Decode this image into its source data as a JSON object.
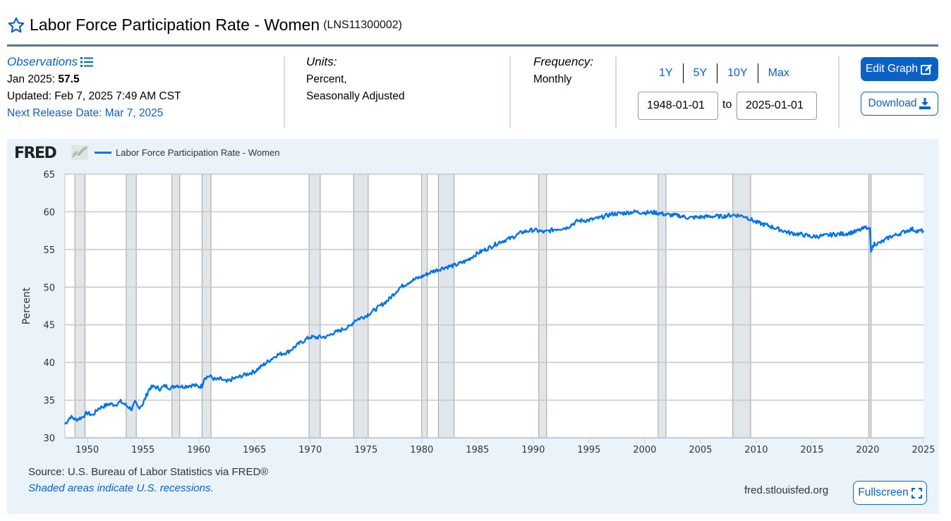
{
  "header": {
    "title": "Labor Force Participation Rate - Women",
    "series_id": "(LNS11300002)"
  },
  "observations": {
    "label": "Observations",
    "latest_period": "Jan 2025:",
    "latest_value": "57.5",
    "updated": "Updated: Feb 7, 2025 7:49 AM CST",
    "next_release": "Next Release Date: Mar 7, 2025"
  },
  "units": {
    "label": "Units:",
    "line1": "Percent,",
    "line2": "Seasonally Adjusted"
  },
  "frequency": {
    "label": "Frequency:",
    "value": "Monthly"
  },
  "range": {
    "buttons": [
      "1Y",
      "5Y",
      "10Y",
      "Max"
    ],
    "start": "1948-01-01",
    "to_label": "to",
    "end": "2025-01-01"
  },
  "actions": {
    "edit_graph": "Edit Graph",
    "download": "Download",
    "fullscreen": "Fullscreen"
  },
  "graph_footer": {
    "source": "Source: U.S. Bureau of Labor Statistics via FRED®",
    "shaded_note": "Shaded areas indicate U.S. recessions.",
    "url": "fred.stlouisfed.org"
  },
  "logo": "FRED",
  "colors": {
    "line": "#0073e6",
    "accent": "#0b61c4",
    "recession": "#e1e6eb",
    "panel": "#eaf2fa"
  },
  "chart_data": {
    "type": "line",
    "title": "",
    "legend": [
      "Labor Force Participation Rate - Women"
    ],
    "legend_position": "top-left",
    "xlabel": "",
    "ylabel": "Percent",
    "xlim": [
      1948,
      2025
    ],
    "ylim": [
      30,
      65
    ],
    "grid": true,
    "x_ticks": [
      "1950",
      "1955",
      "1960",
      "1965",
      "1970",
      "1975",
      "1980",
      "1985",
      "1990",
      "1995",
      "2000",
      "2005",
      "2010",
      "2015",
      "2020",
      "2025"
    ],
    "y_ticks": [
      "30",
      "35",
      "40",
      "45",
      "50",
      "55",
      "60",
      "65"
    ],
    "recessions": [
      [
        1948.9,
        1949.8
      ],
      [
        1953.5,
        1954.4
      ],
      [
        1957.6,
        1958.3
      ],
      [
        1960.3,
        1961.1
      ],
      [
        1969.9,
        1970.9
      ],
      [
        1973.9,
        1975.2
      ],
      [
        1980.0,
        1980.5
      ],
      [
        1981.5,
        1982.9
      ],
      [
        1990.5,
        1991.2
      ],
      [
        2001.2,
        2001.9
      ],
      [
        2007.9,
        2009.5
      ],
      [
        2020.1,
        2020.3
      ]
    ],
    "series": [
      {
        "name": "Labor Force Participation Rate - Women",
        "x": [
          1948.0,
          1948.5,
          1949.0,
          1949.5,
          1950.0,
          1950.5,
          1951.0,
          1951.5,
          1952.0,
          1952.5,
          1953.0,
          1953.5,
          1954.0,
          1954.3,
          1954.6,
          1955.0,
          1955.3,
          1955.6,
          1956.0,
          1956.5,
          1957.0,
          1957.5,
          1958.0,
          1958.5,
          1959.0,
          1959.5,
          1960.0,
          1960.3,
          1960.5,
          1961.0,
          1961.5,
          1962.0,
          1962.5,
          1963.0,
          1963.5,
          1964.0,
          1965.0,
          1966.0,
          1967.0,
          1968.0,
          1969.0,
          1970.0,
          1970.5,
          1971.0,
          1971.5,
          1972.0,
          1972.5,
          1973.0,
          1973.5,
          1974.0,
          1975.0,
          1976.0,
          1977.0,
          1978.0,
          1979.0,
          1980.0,
          1981.0,
          1982.0,
          1983.0,
          1984.0,
          1985.0,
          1986.0,
          1987.0,
          1988.0,
          1989.0,
          1990.0,
          1991.0,
          1992.0,
          1993.0,
          1994.0,
          1995.0,
          1996.0,
          1997.0,
          1998.0,
          1999.0,
          2000.0,
          2001.0,
          2002.0,
          2003.0,
          2004.0,
          2005.0,
          2006.0,
          2007.0,
          2008.0,
          2009.0,
          2010.0,
          2011.0,
          2012.0,
          2013.0,
          2014.0,
          2015.0,
          2016.0,
          2017.0,
          2018.0,
          2019.0,
          2020.0,
          2020.2,
          2020.3,
          2020.6,
          2021.0,
          2021.5,
          2022.0,
          2022.5,
          2023.0,
          2023.5,
          2024.0,
          2024.5,
          2025.0
        ],
        "values": [
          31.8,
          32.8,
          32.4,
          32.7,
          33.3,
          33.0,
          33.9,
          34.2,
          34.5,
          34.4,
          34.8,
          34.3,
          33.8,
          34.7,
          34.0,
          34.5,
          35.6,
          36.6,
          36.8,
          36.5,
          36.9,
          36.6,
          37.0,
          36.8,
          36.9,
          37.0,
          36.8,
          36.9,
          38.0,
          38.2,
          37.7,
          37.8,
          37.4,
          37.8,
          38.0,
          38.3,
          38.8,
          39.9,
          41.0,
          41.4,
          42.5,
          43.4,
          43.3,
          43.4,
          43.4,
          43.9,
          44.1,
          44.5,
          44.7,
          45.6,
          46.2,
          47.2,
          48.3,
          49.9,
          50.8,
          51.4,
          52.1,
          52.6,
          52.9,
          53.5,
          54.5,
          55.2,
          56.0,
          56.5,
          57.3,
          57.6,
          57.3,
          57.7,
          57.9,
          58.8,
          58.9,
          59.2,
          59.7,
          59.8,
          60.0,
          59.9,
          59.9,
          59.6,
          59.5,
          59.2,
          59.3,
          59.4,
          59.4,
          59.6,
          59.4,
          58.6,
          58.2,
          57.7,
          57.2,
          57.0,
          56.7,
          56.8,
          57.0,
          57.1,
          57.4,
          58.0,
          57.8,
          54.7,
          55.8,
          55.8,
          56.2,
          56.7,
          56.9,
          57.2,
          57.5,
          57.7,
          57.4,
          57.5
        ]
      }
    ]
  }
}
